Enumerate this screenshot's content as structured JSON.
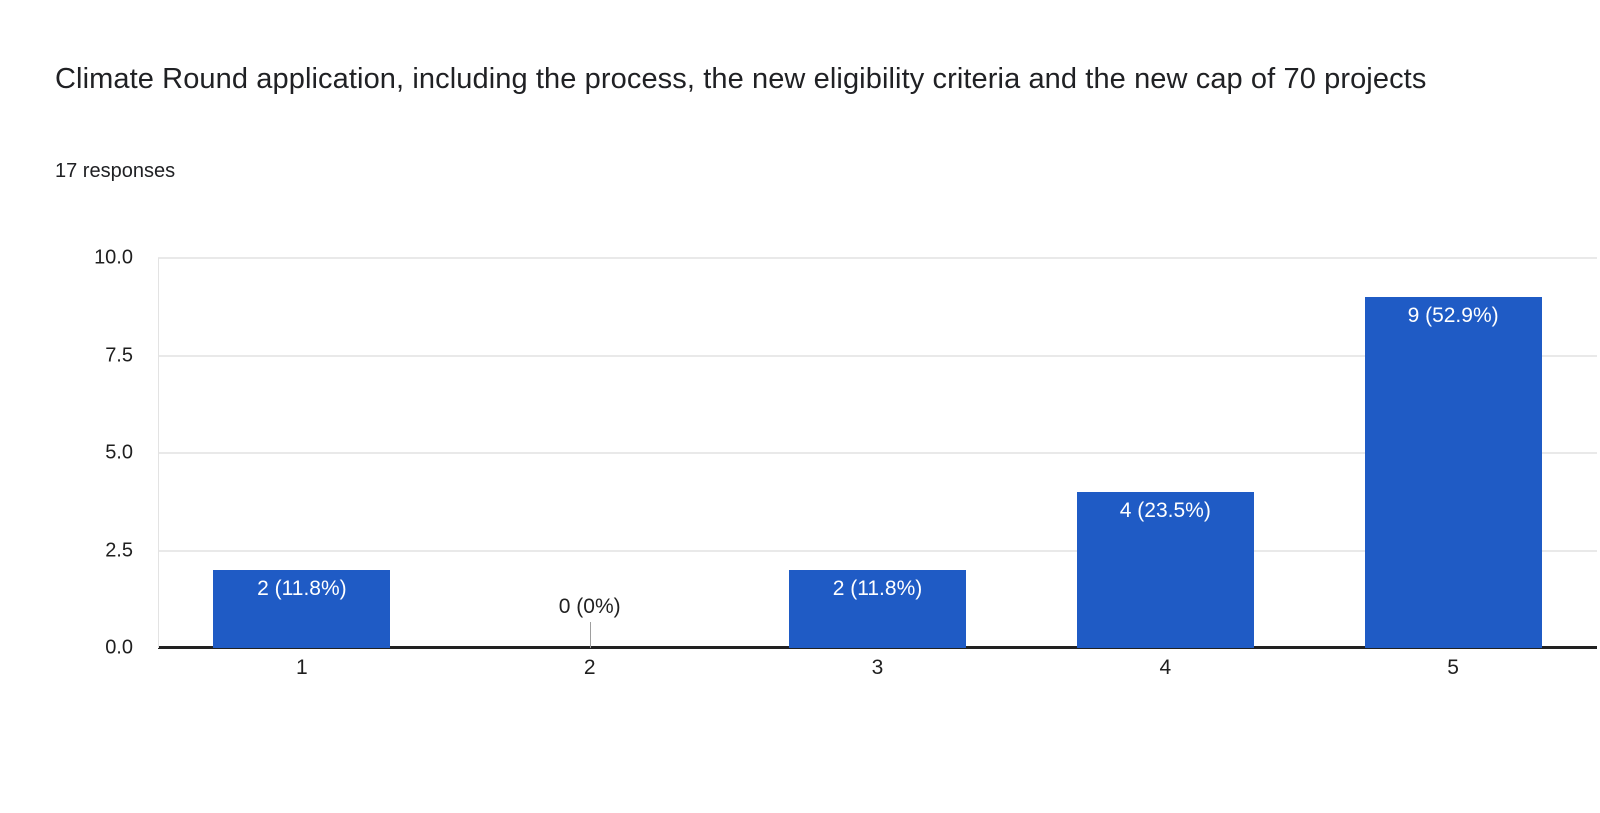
{
  "header": {
    "title": "Climate Round application, including the process, the new eligibility criteria and the new cap of 70 projects",
    "responses_count": "17 responses"
  },
  "chart_data": {
    "type": "bar",
    "title": "Climate Round application, including the process, the new eligibility criteria and the new cap of 70 projects",
    "subtitle": "17 responses",
    "categories": [
      "1",
      "2",
      "3",
      "4",
      "5"
    ],
    "values": [
      2,
      0,
      2,
      4,
      9
    ],
    "bar_labels": [
      "2 (11.8%)",
      "0 (0%)",
      "2 (11.8%)",
      "4 (23.5%)",
      "9 (52.9%)"
    ],
    "xlabel": "",
    "ylabel": "",
    "ylim": [
      0,
      10
    ],
    "yticks": [
      0,
      2.5,
      5,
      7.5,
      10
    ],
    "ytick_labels": [
      "0.0",
      "2.5",
      "5.0",
      "7.5",
      "10.0"
    ],
    "grid": true,
    "legend": "none",
    "bar_color": "#1f5bc5",
    "label_color_inside_bar": "#ffffff",
    "label_color_zero_bar": "#212121",
    "gridline_color": "#e9e9e9",
    "axis_line_color": "#212121"
  }
}
